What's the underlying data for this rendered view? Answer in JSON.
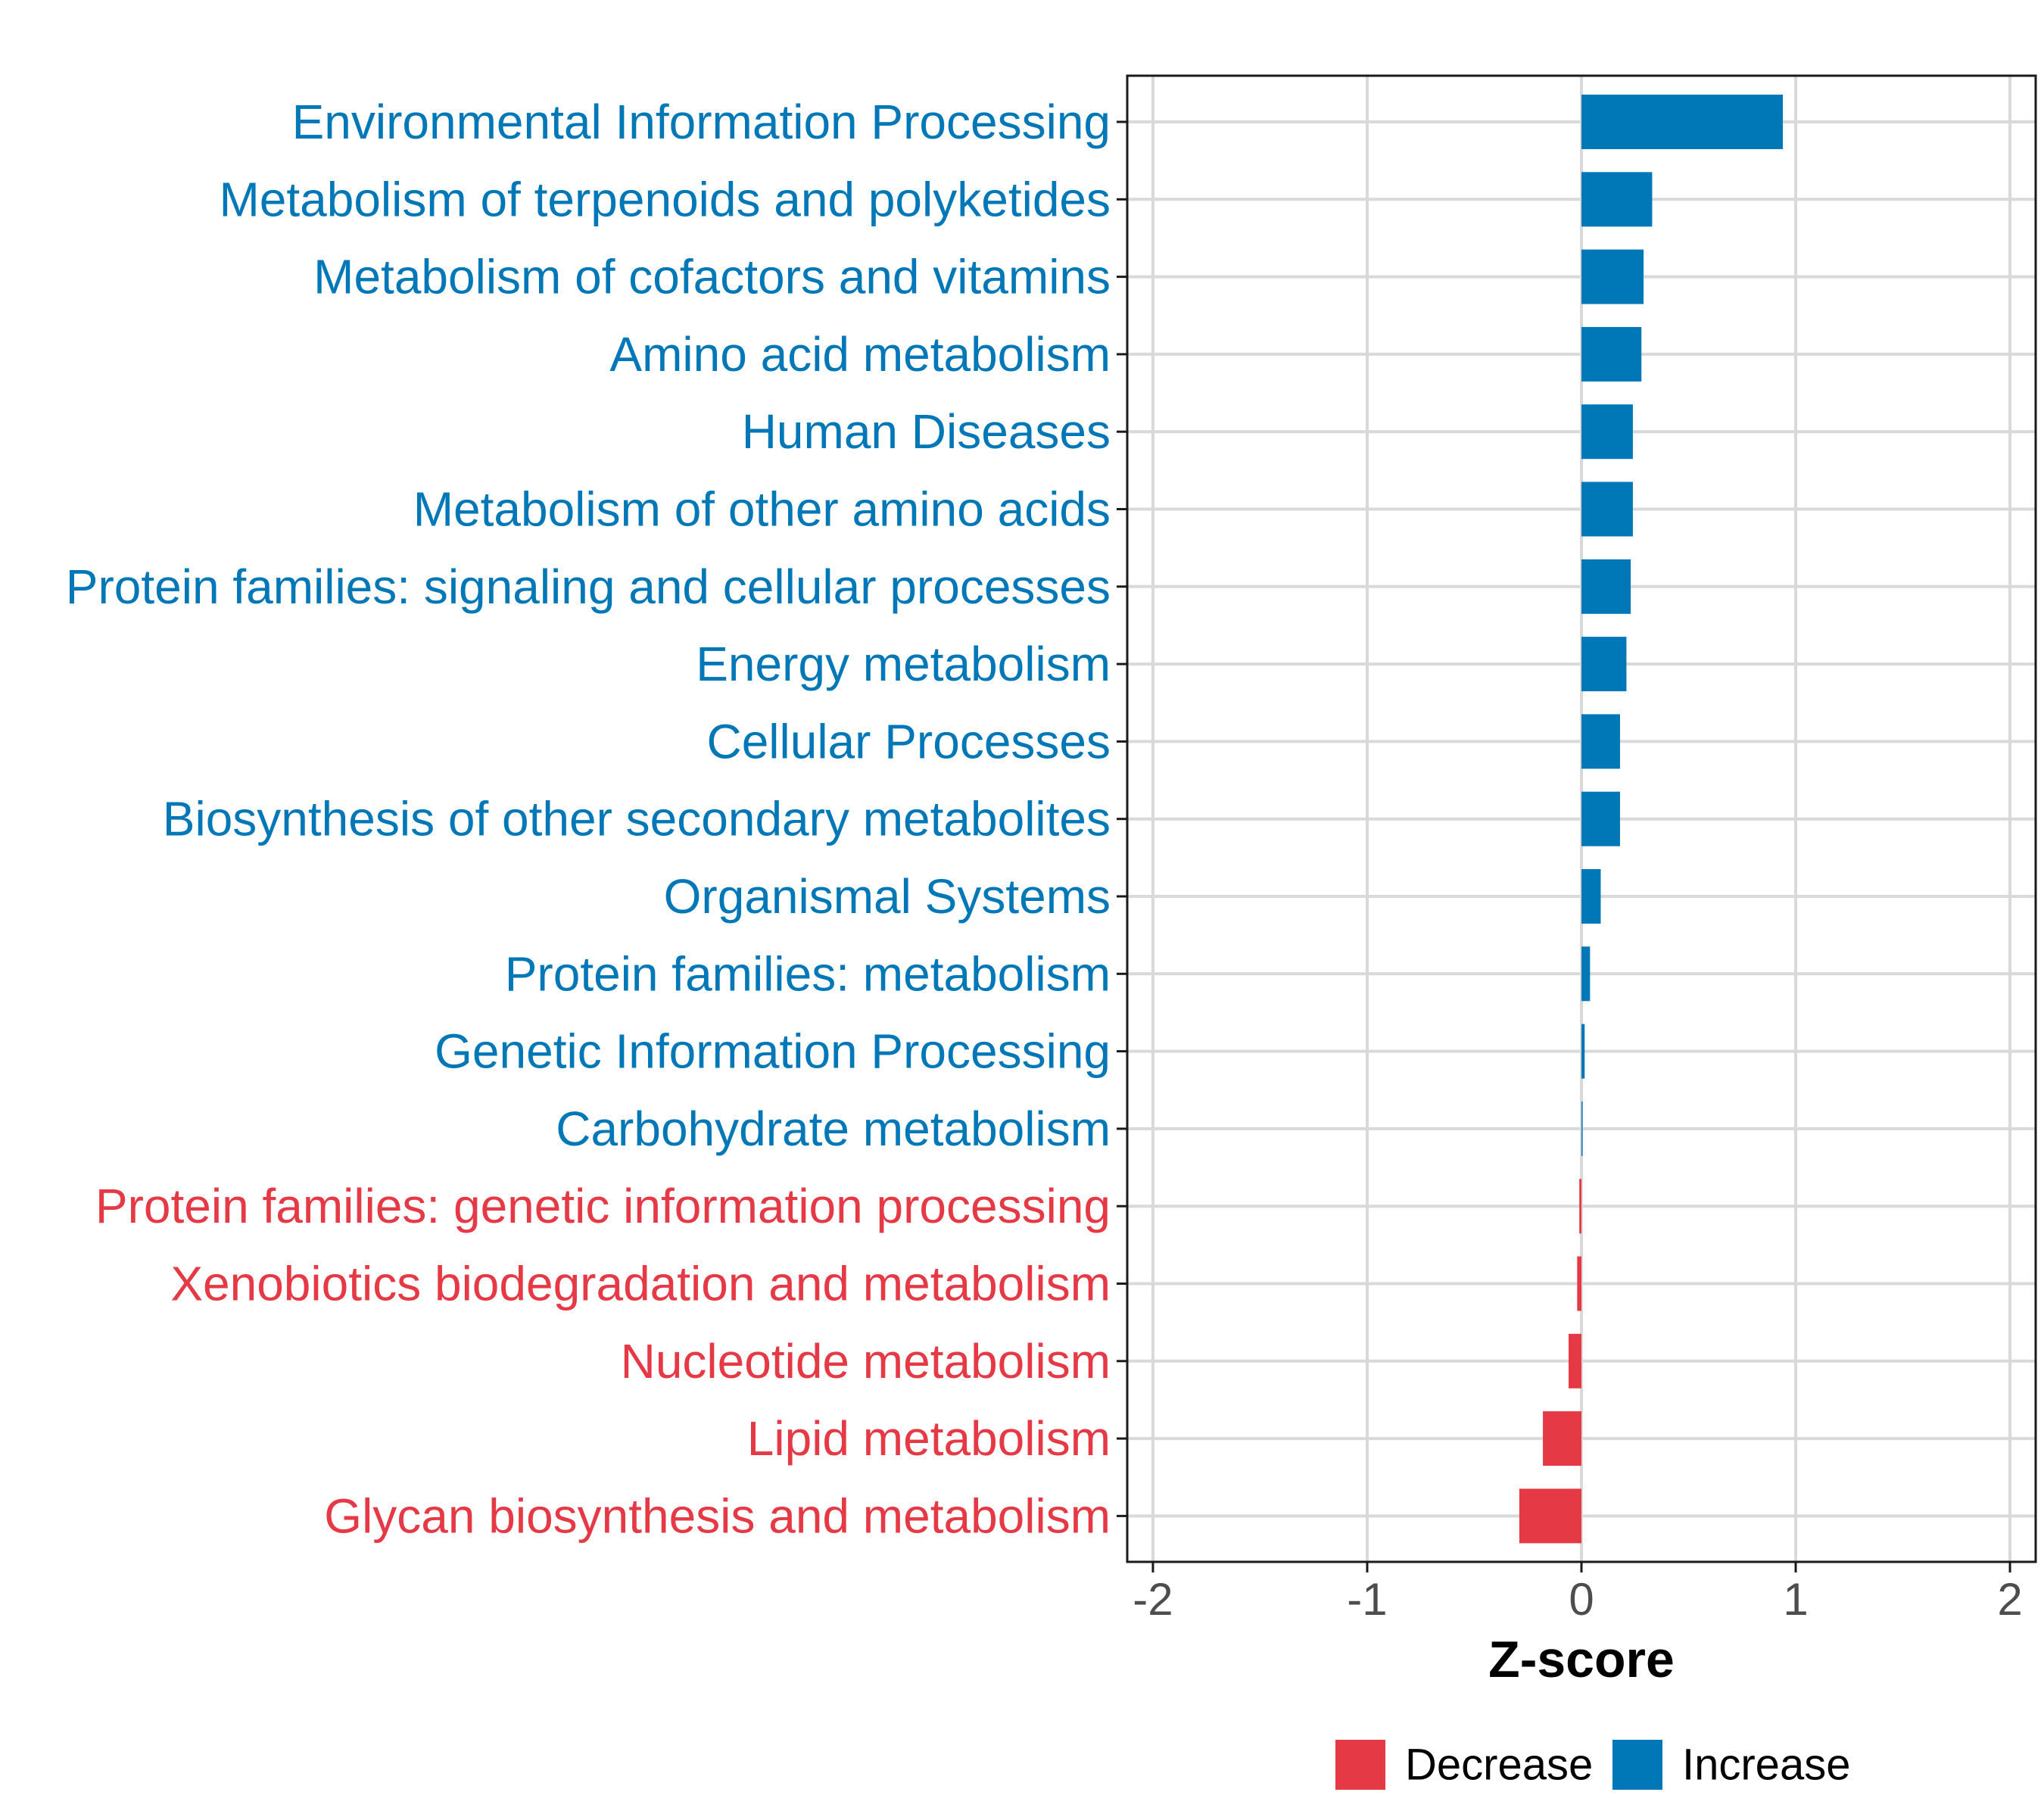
{
  "chart_data": {
    "type": "bar",
    "orientation": "horizontal",
    "xlabel": "Z-score",
    "xlim": [
      -2.12,
      2.12
    ],
    "xticks": [
      -2,
      -1,
      0,
      1,
      2
    ],
    "xtick_labels": [
      "-2",
      "-1",
      "0",
      "1",
      "2"
    ],
    "grid": true,
    "categories": [
      "Environmental Information Processing",
      "Metabolism of terpenoids and polyketides",
      "Metabolism of cofactors and vitamins",
      "Amino acid metabolism",
      "Human Diseases",
      "Metabolism of other amino acids",
      "Protein families: signaling and cellular processes",
      "Energy metabolism",
      "Cellular Processes",
      "Biosynthesis of other secondary metabolites",
      "Organismal Systems",
      "Protein families: metabolism",
      "Genetic Information Processing",
      "Carbohydrate metabolism",
      "Protein families: genetic information processing",
      "Xenobiotics biodegradation and metabolism",
      "Nucleotide metabolism",
      "Lipid metabolism",
      "Glycan biosynthesis and metabolism"
    ],
    "values": [
      0.94,
      0.33,
      0.29,
      0.28,
      0.24,
      0.24,
      0.23,
      0.21,
      0.18,
      0.18,
      0.09,
      0.04,
      0.015,
      0.005,
      -0.01,
      -0.02,
      -0.06,
      -0.18,
      -0.29
    ],
    "legend": {
      "position": "bottom",
      "entries": [
        {
          "label": "Decrease",
          "color": "#e63946"
        },
        {
          "label": "Increase",
          "color": "#0077b6"
        }
      ]
    },
    "colors": {
      "increase": "#0077b6",
      "decrease": "#e63946"
    }
  }
}
